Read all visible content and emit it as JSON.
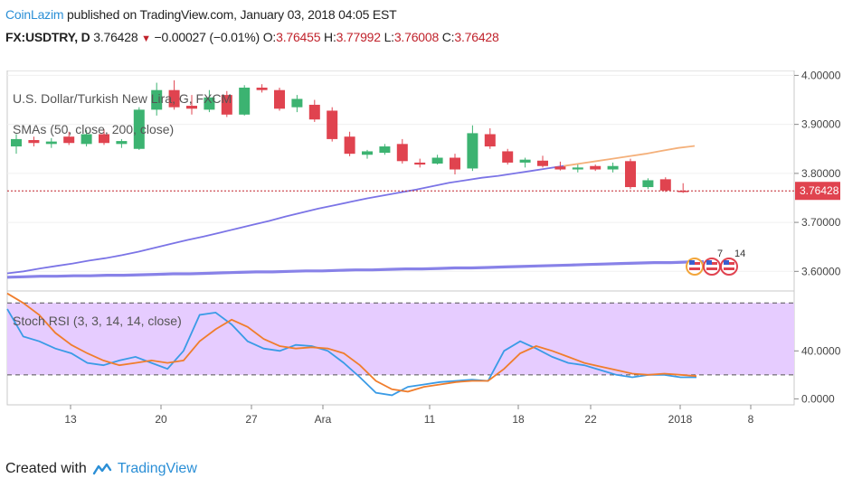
{
  "header": {
    "author": "CoinLazim",
    "published": "published on TradingView.com, January 03, 2018 04:05 EST",
    "symbol": "FX:USDTRY, D",
    "last": "3.76428",
    "change": "−0.00027 (−0.01%)",
    "o_label": "O:",
    "o": "3.76455",
    "h_label": "H:",
    "h": "3.77992",
    "l_label": "L:",
    "l": "3.76008",
    "c_label": "C:",
    "c": "3.76428"
  },
  "colors": {
    "up": "#3cb371",
    "down": "#e0434f",
    "sma50": "#f4b07a",
    "sma200": "#7b74e6",
    "rsi_k": "#3a9be6",
    "rsi_d": "#f07d2c",
    "rsi_band": "#e6ccff"
  },
  "chart_data": [
    {
      "type": "candlestick",
      "title": "U.S. Dollar/Turkish New Lira, G, FXCM",
      "subtitle": "SMAs (50, close, 200, close)",
      "ylim": [
        3.56,
        4.01
      ],
      "yticks": [
        "4.00000",
        "3.90000",
        "3.80000",
        "3.70000",
        "3.60000"
      ],
      "ytick_values": [
        4.0,
        3.9,
        3.8,
        3.7,
        3.6
      ],
      "last_price_label": "3.76428",
      "last_price": 3.76428,
      "xlabels": [
        "13",
        "20",
        "27",
        "Ara",
        "11",
        "18",
        "22",
        "2018",
        "8"
      ],
      "candles": [
        {
          "o": 3.855,
          "h": 3.88,
          "l": 3.84,
          "c": 3.87
        },
        {
          "o": 3.868,
          "h": 3.875,
          "l": 3.855,
          "c": 3.862
        },
        {
          "o": 3.86,
          "h": 3.872,
          "l": 3.852,
          "c": 3.865
        },
        {
          "o": 3.875,
          "h": 3.885,
          "l": 3.858,
          "c": 3.862
        },
        {
          "o": 3.86,
          "h": 3.888,
          "l": 3.855,
          "c": 3.88
        },
        {
          "o": 3.88,
          "h": 3.89,
          "l": 3.858,
          "c": 3.862
        },
        {
          "o": 3.86,
          "h": 3.87,
          "l": 3.852,
          "c": 3.866
        },
        {
          "o": 3.85,
          "h": 3.935,
          "l": 3.848,
          "c": 3.93
        },
        {
          "o": 3.93,
          "h": 3.985,
          "l": 3.918,
          "c": 3.97
        },
        {
          "o": 3.97,
          "h": 3.99,
          "l": 3.93,
          "c": 3.935
        },
        {
          "o": 3.938,
          "h": 3.96,
          "l": 3.92,
          "c": 3.932
        },
        {
          "o": 3.93,
          "h": 3.97,
          "l": 3.925,
          "c": 3.955
        },
        {
          "o": 3.96,
          "h": 3.968,
          "l": 3.915,
          "c": 3.92
        },
        {
          "o": 3.92,
          "h": 3.98,
          "l": 3.918,
          "c": 3.975
        },
        {
          "o": 3.975,
          "h": 3.982,
          "l": 3.965,
          "c": 3.97
        },
        {
          "o": 3.97,
          "h": 3.975,
          "l": 3.928,
          "c": 3.932
        },
        {
          "o": 3.935,
          "h": 3.96,
          "l": 3.925,
          "c": 3.952
        },
        {
          "o": 3.94,
          "h": 3.95,
          "l": 3.905,
          "c": 3.91
        },
        {
          "o": 3.928,
          "h": 3.935,
          "l": 3.865,
          "c": 3.87
        },
        {
          "o": 3.875,
          "h": 3.885,
          "l": 3.835,
          "c": 3.84
        },
        {
          "o": 3.838,
          "h": 3.848,
          "l": 3.83,
          "c": 3.845
        },
        {
          "o": 3.842,
          "h": 3.86,
          "l": 3.838,
          "c": 3.855
        },
        {
          "o": 3.86,
          "h": 3.87,
          "l": 3.82,
          "c": 3.825
        },
        {
          "o": 3.822,
          "h": 3.83,
          "l": 3.812,
          "c": 3.818
        },
        {
          "o": 3.82,
          "h": 3.838,
          "l": 3.818,
          "c": 3.832
        },
        {
          "o": 3.832,
          "h": 3.84,
          "l": 3.798,
          "c": 3.808
        },
        {
          "o": 3.81,
          "h": 3.898,
          "l": 3.805,
          "c": 3.882
        },
        {
          "o": 3.88,
          "h": 3.892,
          "l": 3.85,
          "c": 3.855
        },
        {
          "o": 3.845,
          "h": 3.85,
          "l": 3.818,
          "c": 3.822
        },
        {
          "o": 3.822,
          "h": 3.832,
          "l": 3.812,
          "c": 3.828
        },
        {
          "o": 3.826,
          "h": 3.836,
          "l": 3.812,
          "c": 3.815
        },
        {
          "o": 3.814,
          "h": 3.824,
          "l": 3.806,
          "c": 3.808
        },
        {
          "o": 3.808,
          "h": 3.818,
          "l": 3.802,
          "c": 3.812
        },
        {
          "o": 3.815,
          "h": 3.818,
          "l": 3.805,
          "c": 3.808
        },
        {
          "o": 3.808,
          "h": 3.822,
          "l": 3.802,
          "c": 3.815
        },
        {
          "o": 3.825,
          "h": 3.83,
          "l": 3.768,
          "c": 3.772
        },
        {
          "o": 3.772,
          "h": 3.79,
          "l": 3.768,
          "c": 3.786
        },
        {
          "o": 3.788,
          "h": 3.792,
          "l": 3.762,
          "c": 3.765
        },
        {
          "o": 3.76455,
          "h": 3.77992,
          "l": 3.76008,
          "c": 3.76428
        }
      ],
      "sma50": [
        3.596,
        3.6,
        3.606,
        3.611,
        3.616,
        3.622,
        3.627,
        3.633,
        3.64,
        3.648,
        3.656,
        3.664,
        3.671,
        3.679,
        3.687,
        3.695,
        3.703,
        3.712,
        3.72,
        3.728,
        3.735,
        3.742,
        3.749,
        3.755,
        3.761,
        3.767,
        3.774,
        3.781,
        3.786,
        3.791,
        3.795,
        3.8,
        3.805,
        3.81,
        3.815,
        3.82,
        3.825,
        3.83,
        3.835,
        3.84,
        3.846,
        3.852,
        3.856
      ],
      "sma200": [
        3.588,
        3.589,
        3.59,
        3.59,
        3.591,
        3.591,
        3.592,
        3.592,
        3.593,
        3.594,
        3.595,
        3.595,
        3.596,
        3.597,
        3.598,
        3.599,
        3.599,
        3.6,
        3.601,
        3.601,
        3.602,
        3.603,
        3.603,
        3.604,
        3.605,
        3.605,
        3.606,
        3.607,
        3.607,
        3.608,
        3.609,
        3.61,
        3.611,
        3.612,
        3.613,
        3.614,
        3.615,
        3.616,
        3.617,
        3.618,
        3.618,
        3.619,
        3.62
      ]
    },
    {
      "type": "line",
      "title": "Stoch RSI (3, 3, 14, 14, close)",
      "ylim": [
        -5,
        90
      ],
      "yticks": [
        "40.0000",
        "0.0000"
      ],
      "ytick_values": [
        40,
        0
      ],
      "bands": [
        20,
        80
      ],
      "series": [
        {
          "key": "k",
          "values": [
            75,
            52,
            48,
            42,
            38,
            30,
            28,
            32,
            35,
            30,
            25,
            40,
            70,
            72,
            62,
            48,
            42,
            40,
            45,
            44,
            40,
            30,
            18,
            5,
            3,
            10,
            12,
            14,
            15,
            16,
            15,
            40,
            48,
            42,
            35,
            30,
            28,
            24,
            20,
            18,
            20,
            20,
            18,
            18
          ]
        },
        {
          "key": "d",
          "values": [
            88,
            80,
            70,
            55,
            45,
            38,
            32,
            28,
            30,
            32,
            30,
            32,
            48,
            58,
            66,
            60,
            50,
            44,
            42,
            43,
            42,
            38,
            28,
            15,
            8,
            6,
            10,
            12,
            14,
            15,
            15,
            25,
            38,
            44,
            40,
            35,
            30,
            27,
            24,
            21,
            20,
            21,
            20,
            19
          ]
        }
      ]
    }
  ],
  "footer": {
    "created": "Created with",
    "brand": "TradingView"
  }
}
